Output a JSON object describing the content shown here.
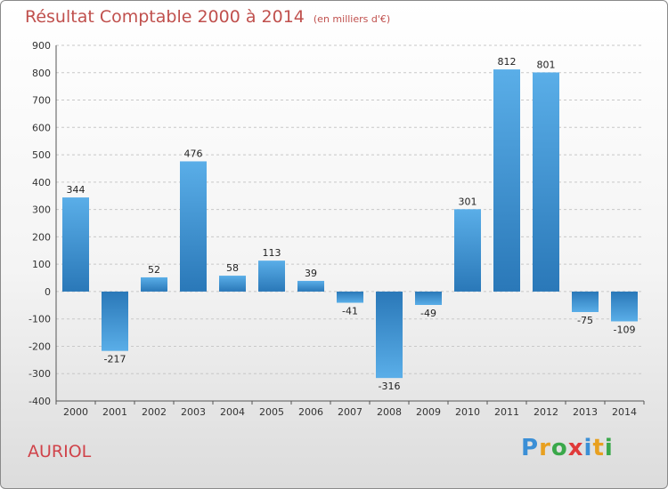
{
  "chart_data": {
    "type": "bar",
    "title": "Résultat Comptable 2000 à 2014",
    "unit": "(en milliers d'€)",
    "categories": [
      "2000",
      "2001",
      "2002",
      "2003",
      "2004",
      "2005",
      "2006",
      "2007",
      "2008",
      "2009",
      "2010",
      "2011",
      "2012",
      "2013",
      "2014"
    ],
    "values": [
      344,
      -217,
      52,
      476,
      58,
      113,
      39,
      -41,
      -316,
      -49,
      301,
      812,
      801,
      -75,
      -109
    ],
    "ylim": [
      -400,
      900
    ],
    "yticks": [
      -400,
      -300,
      -200,
      -100,
      0,
      100,
      200,
      300,
      400,
      500,
      600,
      700,
      800,
      900
    ],
    "grid": true,
    "bar_color_light": "#5aaee8",
    "bar_color_dark": "#2a78b8"
  },
  "commune": "AURIOL",
  "logo": {
    "letters": [
      "P",
      "r",
      "o",
      "x",
      "i",
      "t",
      "i"
    ],
    "colors": [
      "#3b8fd6",
      "#e8a020",
      "#3aa84a",
      "#e03a3a",
      "#3b8fd6",
      "#e8a020",
      "#3aa84a"
    ]
  }
}
